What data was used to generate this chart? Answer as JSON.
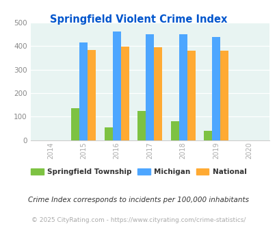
{
  "title": "Springfield Violent Crime Index",
  "years": [
    2014,
    2015,
    2016,
    2017,
    2018,
    2019,
    2020
  ],
  "data_years": [
    2015,
    2016,
    2017,
    2018,
    2019
  ],
  "springfield": [
    135,
    53,
    125,
    80,
    40
  ],
  "michigan": [
    415,
    462,
    450,
    450,
    438
  ],
  "national": [
    384,
    398,
    394,
    381,
    381
  ],
  "bar_colors": {
    "springfield": "#7DC242",
    "michigan": "#4DA6FF",
    "national": "#FFAA33"
  },
  "ylim": [
    0,
    500
  ],
  "yticks": [
    0,
    100,
    200,
    300,
    400,
    500
  ],
  "background_color": "#E8F4F2",
  "title_color": "#0055CC",
  "legend_labels": [
    "Springfield Township",
    "Michigan",
    "National"
  ],
  "footnote1": "Crime Index corresponds to incidents per 100,000 inhabitants",
  "footnote2": "© 2025 CityRating.com - https://www.cityrating.com/crime-statistics/",
  "footnote_color1": "#333333",
  "footnote_color2": "#AAAAAA",
  "xtick_color": "#AAAAAA",
  "ytick_color": "#888888"
}
